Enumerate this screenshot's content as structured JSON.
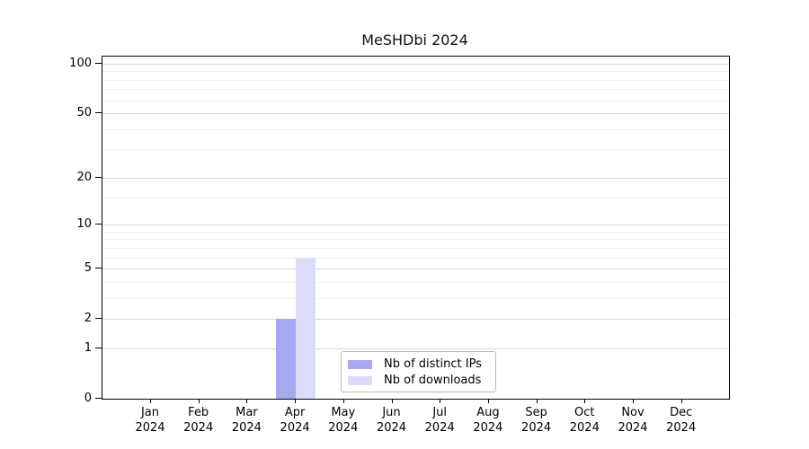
{
  "chart_data": {
    "type": "bar",
    "title": "MeSHDbi 2024",
    "year": "2024",
    "categories": [
      "Jan",
      "Feb",
      "Mar",
      "Apr",
      "May",
      "Jun",
      "Jul",
      "Aug",
      "Sep",
      "Oct",
      "Nov",
      "Dec"
    ],
    "series": [
      {
        "name": "Nb of distinct IPs",
        "color": "#a9a9f0",
        "values": [
          0,
          0,
          0,
          2,
          0,
          0,
          0,
          0,
          0,
          0,
          0,
          0
        ]
      },
      {
        "name": "Nb of downloads",
        "color": "#dcdcf8",
        "values": [
          0,
          0,
          0,
          6,
          0,
          0,
          0,
          0,
          0,
          0,
          0,
          0
        ]
      }
    ],
    "xlabel": "",
    "ylabel": "",
    "y_scale": "log1p",
    "y_ticks": [
      0,
      1,
      2,
      5,
      10,
      20,
      50,
      100
    ],
    "y_minor_ticks": [
      3,
      4,
      6,
      7,
      8,
      9,
      15,
      30,
      40,
      60,
      70,
      80,
      90
    ],
    "ylim": [
      0,
      110
    ],
    "grid": true,
    "legend_position": "bottom-center",
    "colors": {
      "major_grid": "#d8d8d8",
      "minor_grid": "#f0f0f0",
      "axis": "#000000",
      "text": "#000000",
      "legend_border": "#b9b9b9",
      "background": "#ffffff"
    }
  }
}
